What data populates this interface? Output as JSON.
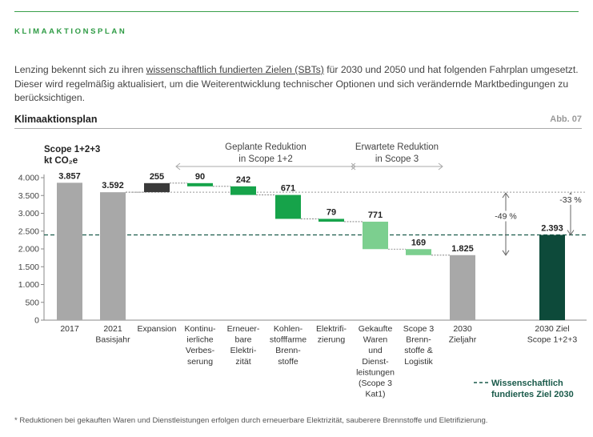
{
  "section_label": "KLIMAAKTIONSPLAN",
  "intro": {
    "part1": "Lenzing bekennt sich zu ihren ",
    "link": "wissenschaftlich fundierten Zielen (SBTs)",
    "part2": " für 2030 und 2050 und hat folgenden Fahrplan umgesetzt. Dieser wird regelmäßig aktualisiert, um die Weiterentwicklung technischer Optionen und sich verändernde Marktbedingungen zu berücksichtigen."
  },
  "chart_title": "Klimaaktionsplan",
  "figure_label": "Abb. 07",
  "footnote": "* Reduktionen bei gekauften Waren und Dienstleistungen erfolgen durch erneuerbare Elektrizität, sauberere Brennstoffe und Eletrifizierung.",
  "colors": {
    "gray": "#a8a8a8",
    "dark_gray": "#3a3a3a",
    "green": "#16a34a",
    "light_green": "#7ccf8f",
    "dark_teal": "#0d4a3a",
    "accent": "#2e9b44"
  },
  "chart_data": {
    "type": "waterfall",
    "ylabel_lines": [
      "Scope 1+2+3",
      "kt CO₂e"
    ],
    "ylim": [
      0,
      4000
    ],
    "yticks": [
      0,
      500,
      1000,
      1500,
      2000,
      2500,
      3000,
      3500,
      4000
    ],
    "ytick_labels": [
      "0",
      "500",
      "1.000",
      "1.500",
      "2.000",
      "2.500",
      "3.000",
      "3.500",
      "4.000"
    ],
    "bars": [
      {
        "label_lines": [
          "2017"
        ],
        "kind": "total",
        "value": 3857,
        "value_label": "3.857",
        "color": "gray"
      },
      {
        "label_lines": [
          "2021",
          "Basisjahr"
        ],
        "kind": "total",
        "value": 3592,
        "value_label": "3.592",
        "color": "gray"
      },
      {
        "label_lines": [
          "Expansion"
        ],
        "kind": "increase",
        "value": 255,
        "value_label": "255",
        "color": "dark_gray"
      },
      {
        "label_lines": [
          "Kontinu-",
          "ierliche",
          "Verbes-",
          "serung"
        ],
        "kind": "decrease",
        "value": 90,
        "value_label": "90",
        "color": "green"
      },
      {
        "label_lines": [
          "Erneuer-",
          "bare",
          "Elektri-",
          "zität"
        ],
        "kind": "decrease",
        "value": 242,
        "value_label": "242",
        "color": "green"
      },
      {
        "label_lines": [
          "Kohlen-",
          "stofffarme",
          "Brenn-",
          "stoffe"
        ],
        "kind": "decrease",
        "value": 671,
        "value_label": "671",
        "color": "green"
      },
      {
        "label_lines": [
          "Elektrifi-",
          "zierung"
        ],
        "kind": "decrease",
        "value": 79,
        "value_label": "79",
        "color": "green"
      },
      {
        "label_lines": [
          "Gekaufte",
          "Waren",
          "und",
          "Dienst-",
          "leistungen",
          "(Scope 3",
          "Kat1)"
        ],
        "kind": "decrease",
        "value": 771,
        "value_label": "771",
        "color": "light_green"
      },
      {
        "label_lines": [
          "Scope 3",
          "Brenn-",
          "stoffe &",
          "Logistik"
        ],
        "kind": "decrease",
        "value": 169,
        "value_label": "169",
        "color": "light_green"
      },
      {
        "label_lines": [
          "2030",
          "Zieljahr"
        ],
        "kind": "total",
        "value": 1825,
        "value_label": "1.825",
        "color": "gray"
      },
      {
        "label_lines": [
          "2030 Ziel",
          "Scope 1+2+3"
        ],
        "kind": "total",
        "value": 2393,
        "value_label": "2.393",
        "color": "dark_teal"
      }
    ],
    "group_annotations": [
      {
        "label_lines": [
          "Geplante Reduktion",
          "in Scope 1+2"
        ],
        "from_bar": 3,
        "to_bar": 6
      },
      {
        "label_lines": [
          "Erwartete Reduktion",
          "in Scope 3"
        ],
        "from_bar": 7,
        "to_bar": 8
      }
    ],
    "target_line": {
      "value": 2393,
      "legend_lines": [
        "Wissenschaftlich",
        "fundiertes Ziel 2030"
      ]
    },
    "reference_line": {
      "value": 3592
    },
    "percent_annotations": [
      {
        "label": "-49 %",
        "from_value": 3592,
        "to_value": 1825
      },
      {
        "label": "-33 %",
        "from_value": 3592,
        "to_value": 2393
      }
    ]
  }
}
